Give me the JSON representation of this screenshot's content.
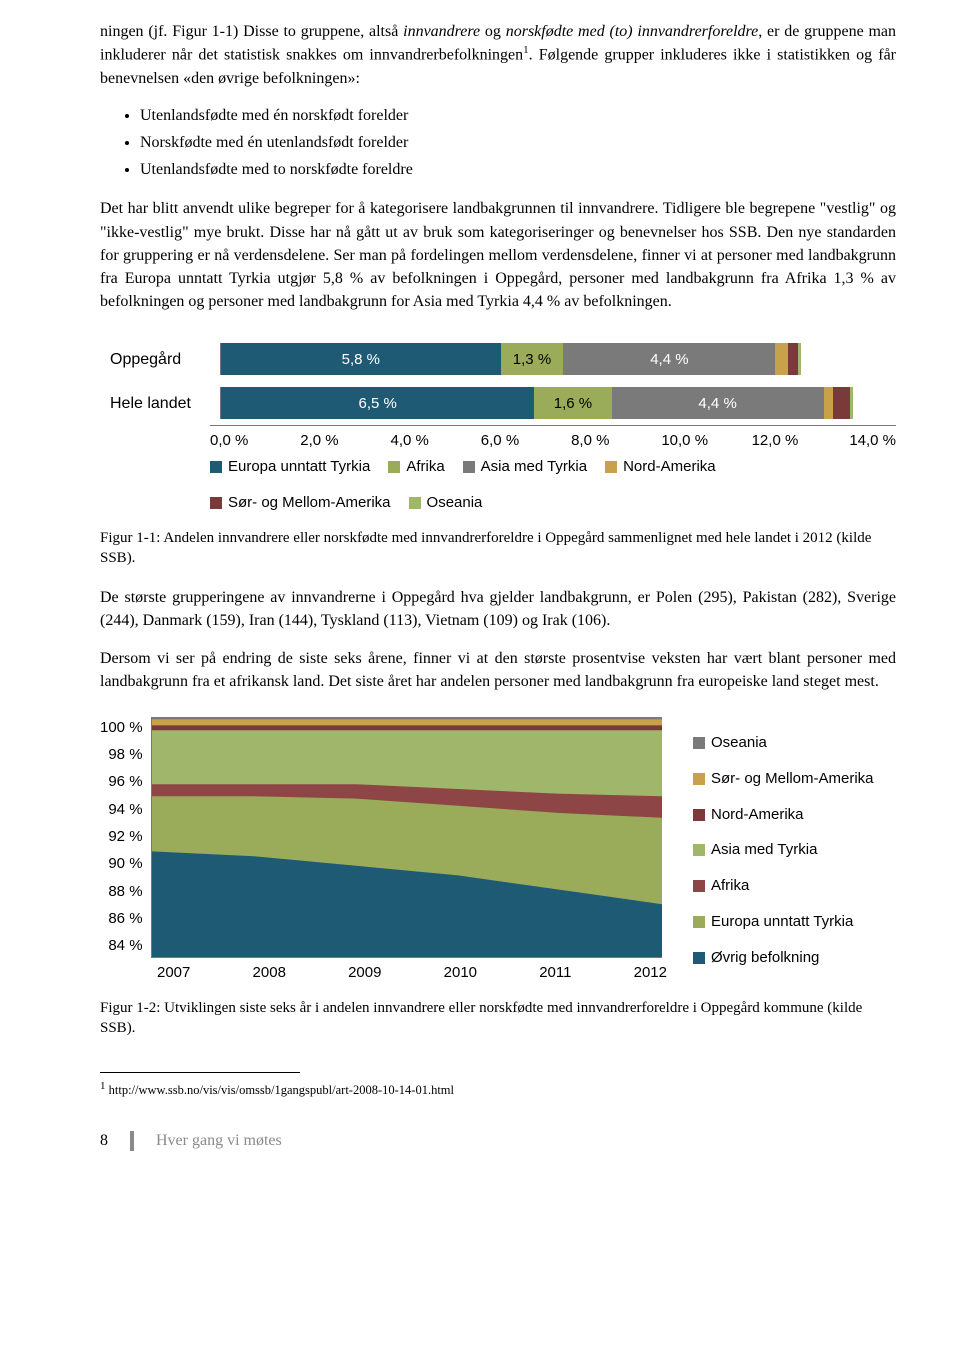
{
  "para1_a": "ningen (jf. Figur 1-1) Disse to gruppene, altså ",
  "para1_b": "innvandrere",
  "para1_c": " og ",
  "para1_d": "norskfødte med (to) innvandrerforeldre",
  "para1_e": ", er de gruppene man inkluderer når det statistisk snakkes om innvandrerbefolkningen",
  "para1_f": ". Følgende grupper inkluderes ikke i statistikken og får benevnelsen «den øvrige befolkningen»:",
  "bullet1": "Utenlandsfødte med én norskfødt forelder",
  "bullet2": "Norskfødte med én utenlandsfødt forelder",
  "bullet3": "Utenlandsfødte med to norskfødte foreldre",
  "para2": "Det har blitt anvendt ulike begreper for å kategorisere landbakgrunnen til innvandrere. Tidligere ble begrepene \"vestlig\" og \"ikke-vestlig\" mye brukt. Disse har nå gått ut av bruk som kategoriseringer og benevnelser hos SSB. Den nye standarden for gruppering er nå verdensdelene. Ser man på fordelingen mellom verdensdelene, finner vi at personer med landbakgrunn fra Europa unntatt Tyrkia utgjør 5,8 % av befolkningen i Oppegård, personer med landbakgrunn fra Afrika 1,3 % av befolkningen og personer med landbakgrunn for Asia med Tyrkia 4,4 % av befolkningen.",
  "chart1": {
    "type": "stacked-bar-horizontal",
    "xmax": 14.0,
    "categories": [
      "Oppegård",
      "Hele landet"
    ],
    "series": [
      {
        "name": "Europa unntatt Tyrkia",
        "color": "#1e5a73"
      },
      {
        "name": "Afrika",
        "color": "#9aab5a"
      },
      {
        "name": "Asia med Tyrkia",
        "color": "#7a7a7a"
      },
      {
        "name": "Nord-Amerika",
        "color": "#c7a24a"
      },
      {
        "name": "Sør- og Mellom-Amerika",
        "color": "#7a3a3a"
      },
      {
        "name": "Oseania",
        "color": "#9fb66b"
      }
    ],
    "rows": [
      {
        "values": [
          5.8,
          1.3,
          4.4,
          0.25,
          0.22,
          0.05
        ],
        "labels": [
          "5,8 %",
          "1,3 %",
          "4,4 %",
          "",
          "",
          ""
        ]
      },
      {
        "values": [
          6.5,
          1.6,
          4.4,
          0.2,
          0.35,
          0.05
        ],
        "labels": [
          "6,5 %",
          "1,6 %",
          "4,4 %",
          "",
          "",
          ""
        ]
      }
    ],
    "xticks": [
      "0,0 %",
      "2,0 %",
      "4,0 %",
      "6,0 %",
      "8,0 %",
      "10,0 %",
      "12,0 %",
      "14,0 %"
    ]
  },
  "fig1_caption": "Figur 1-1: Andelen innvandrere eller norskfødte med innvandrerforeldre i Oppegård sammenlignet med hele landet i 2012 (kilde SSB).",
  "para3": "De største grupperingene av innvandrerne i Oppegård hva gjelder landbakgrunn, er Polen (295), Pakistan (282), Sverige (244), Danmark (159), Iran (144), Tyskland (113), Vietnam (109) og Irak (106).",
  "para4": "Dersom vi ser på endring de siste seks årene, finner vi at den største prosentvise veksten har vært blant personer med landbakgrunn fra et afrikansk land. Det siste året har andelen personer med landbakgrunn fra europeiske land steget mest.",
  "chart2": {
    "type": "stacked-area",
    "ymin": 84,
    "ymax": 100,
    "yticks": [
      "100 %",
      "98 %",
      "96 %",
      "94 %",
      "92 %",
      "90 %",
      "88 %",
      "86 %",
      "84 %"
    ],
    "xticks": [
      "2007",
      "2008",
      "2009",
      "2010",
      "2011",
      "2012"
    ],
    "series": [
      {
        "name": "Oseania",
        "color": "#7a7a7a"
      },
      {
        "name": "Sør- og Mellom-Amerika",
        "color": "#c7a24a"
      },
      {
        "name": "Nord-Amerika",
        "color": "#7a3a3a"
      },
      {
        "name": "Asia med Tyrkia",
        "color": "#9fb66b"
      },
      {
        "name": "Afrika",
        "color": "#8d4545"
      },
      {
        "name": "Europa unntatt Tyrkia",
        "color": "#9aab5a"
      },
      {
        "name": "Øvrig befolkning",
        "color": "#1e5a73"
      }
    ],
    "layers": [
      {
        "color": "#7a7a7a",
        "poly": "0,0 100,0 100,100 0,100"
      },
      {
        "color": "#c7a24a",
        "poly": "0,1 100,1 100,100 0,100"
      },
      {
        "color": "#7a3a3a",
        "poly": "0,3.5 100,3.5 100,100 0,100"
      },
      {
        "color": "#9fb66b",
        "poly": "0,5.5 100,5.5 100,100 0,100"
      },
      {
        "color": "#8d4545",
        "poly": "0,28 20,28 40,28 60,30 80,32 100,33 100,100 0,100"
      },
      {
        "color": "#9aab5a",
        "poly": "0,33 20,33 40,34 60,37 80,40 100,42 100,100 0,100"
      },
      {
        "color": "#1e5a73",
        "poly": "0,56 20,58 40,62 60,66 80,72 100,78 100,100 0,100"
      }
    ]
  },
  "fig2_caption": "Figur 1-2: Utviklingen siste seks år i andelen innvandrere eller norskfødte med innvandrerforeldre i Oppegård kommune (kilde SSB).",
  "footnote_num": "1",
  "footnote_text": " http://www.ssb.no/vis/vis/omssb/1gangspubl/art-2008-10-14-01.html",
  "footer_page": "8",
  "footer_title": "Hver gang vi møtes"
}
